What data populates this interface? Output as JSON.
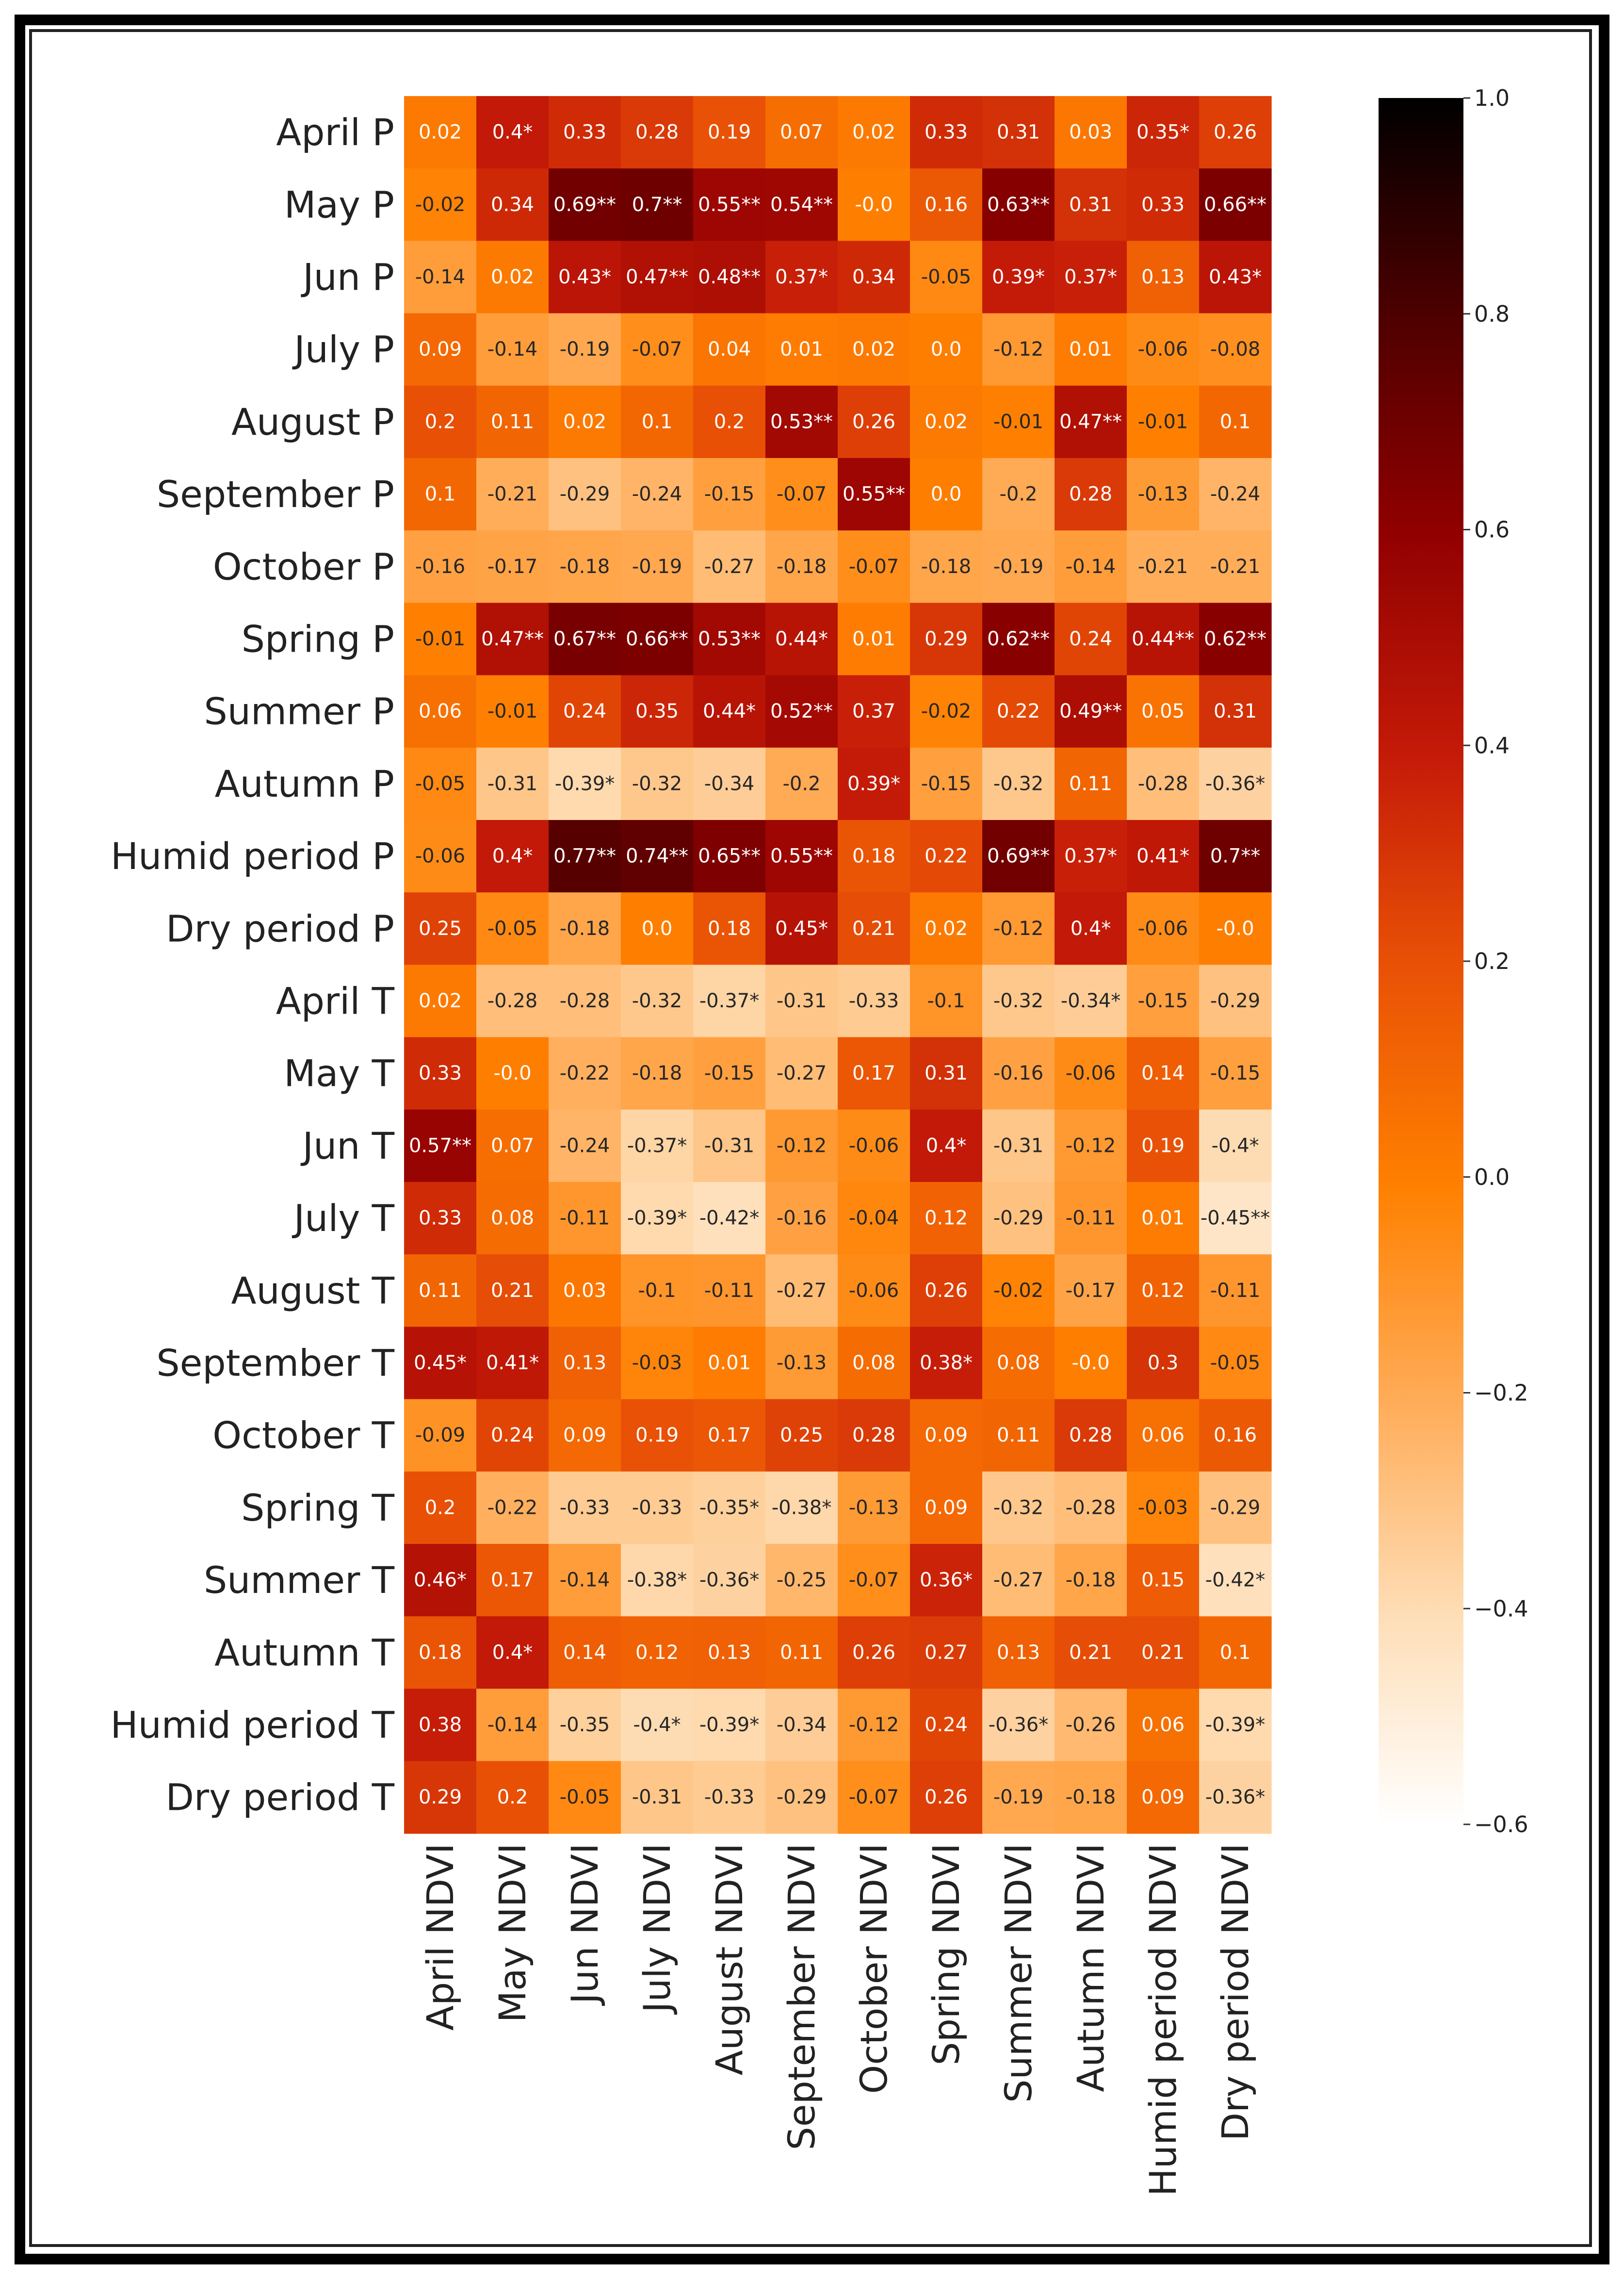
{
  "chart_data": {
    "type": "heatmap",
    "title": "",
    "xlabel": "",
    "ylabel": "",
    "colormap": "gist_heat (reversed)",
    "rows": [
      "April P",
      "May P",
      "Jun P",
      "July P",
      "August P",
      "September P",
      "October P",
      "Spring P",
      "Summer P",
      "Autumn P",
      "Humid  period P",
      "Dry period P",
      "April T",
      "May T",
      "Jun T",
      "July T",
      "August T",
      "September T",
      "October T",
      "Spring T",
      "Summer T",
      "Autumn T",
      "Humid  period T",
      "Dry period T"
    ],
    "columns": [
      "April NDVI",
      "May NDVI",
      "Jun NDVI",
      "July NDVI",
      "August NDVI",
      "September NDVI",
      "October NDVI",
      "Spring NDVI",
      "Summer NDVI",
      "Autumn NDVI",
      "Humid  period NDVI",
      "Dry period NDVI"
    ],
    "values": [
      [
        0.02,
        0.4,
        0.33,
        0.28,
        0.19,
        0.07,
        0.02,
        0.33,
        0.31,
        0.03,
        0.35,
        0.26
      ],
      [
        -0.02,
        0.34,
        0.69,
        0.7,
        0.55,
        0.54,
        -0.0,
        0.16,
        0.63,
        0.31,
        0.33,
        0.66
      ],
      [
        -0.14,
        0.02,
        0.43,
        0.47,
        0.48,
        0.37,
        0.34,
        -0.05,
        0.39,
        0.37,
        0.13,
        0.43
      ],
      [
        0.09,
        -0.14,
        -0.19,
        -0.07,
        0.04,
        0.01,
        0.02,
        0.0,
        -0.12,
        0.01,
        -0.06,
        -0.08
      ],
      [
        0.2,
        0.11,
        0.02,
        0.1,
        0.2,
        0.53,
        0.26,
        0.02,
        -0.01,
        0.47,
        -0.01,
        0.1
      ],
      [
        0.1,
        -0.21,
        -0.29,
        -0.24,
        -0.15,
        -0.07,
        0.55,
        0.0,
        -0.2,
        0.28,
        -0.13,
        -0.24
      ],
      [
        -0.16,
        -0.17,
        -0.18,
        -0.19,
        -0.27,
        -0.18,
        -0.07,
        -0.18,
        -0.19,
        -0.14,
        -0.21,
        -0.21
      ],
      [
        -0.01,
        0.47,
        0.67,
        0.66,
        0.53,
        0.44,
        0.01,
        0.29,
        0.62,
        0.24,
        0.44,
        0.62
      ],
      [
        0.06,
        -0.01,
        0.24,
        0.35,
        0.44,
        0.52,
        0.37,
        -0.02,
        0.22,
        0.49,
        0.05,
        0.31
      ],
      [
        -0.05,
        -0.31,
        -0.39,
        -0.32,
        -0.34,
        -0.2,
        0.39,
        -0.15,
        -0.32,
        0.11,
        -0.28,
        -0.36
      ],
      [
        -0.06,
        0.4,
        0.77,
        0.74,
        0.65,
        0.55,
        0.18,
        0.22,
        0.69,
        0.37,
        0.41,
        0.7
      ],
      [
        0.25,
        -0.05,
        -0.18,
        0.0,
        0.18,
        0.45,
        0.21,
        0.02,
        -0.12,
        0.4,
        -0.06,
        -0.0
      ],
      [
        0.02,
        -0.28,
        -0.28,
        -0.32,
        -0.37,
        -0.31,
        -0.33,
        -0.1,
        -0.32,
        -0.34,
        -0.15,
        -0.29
      ],
      [
        0.33,
        -0.0,
        -0.22,
        -0.18,
        -0.15,
        -0.27,
        0.17,
        0.31,
        -0.16,
        -0.06,
        0.14,
        -0.15
      ],
      [
        0.57,
        0.07,
        -0.24,
        -0.37,
        -0.31,
        -0.12,
        -0.06,
        0.4,
        -0.31,
        -0.12,
        0.19,
        -0.4
      ],
      [
        0.33,
        0.08,
        -0.11,
        -0.39,
        -0.42,
        -0.16,
        -0.04,
        0.12,
        -0.29,
        -0.11,
        0.01,
        -0.45
      ],
      [
        0.11,
        0.21,
        0.03,
        -0.1,
        -0.11,
        -0.27,
        -0.06,
        0.26,
        -0.02,
        -0.17,
        0.12,
        -0.11
      ],
      [
        0.45,
        0.41,
        0.13,
        -0.03,
        0.01,
        -0.13,
        0.08,
        0.38,
        0.08,
        -0.0,
        0.3,
        -0.05
      ],
      [
        -0.09,
        0.24,
        0.09,
        0.19,
        0.17,
        0.25,
        0.28,
        0.09,
        0.11,
        0.28,
        0.06,
        0.16
      ],
      [
        0.2,
        -0.22,
        -0.33,
        -0.33,
        -0.35,
        -0.38,
        -0.13,
        0.09,
        -0.32,
        -0.28,
        -0.03,
        -0.29
      ],
      [
        0.46,
        0.17,
        -0.14,
        -0.38,
        -0.36,
        -0.25,
        -0.07,
        0.36,
        -0.27,
        -0.18,
        0.15,
        -0.42
      ],
      [
        0.18,
        0.4,
        0.14,
        0.12,
        0.13,
        0.11,
        0.26,
        0.27,
        0.13,
        0.21,
        0.21,
        0.1
      ],
      [
        0.38,
        -0.14,
        -0.35,
        -0.4,
        -0.39,
        -0.34,
        -0.12,
        0.24,
        -0.36,
        -0.26,
        0.06,
        -0.39
      ],
      [
        0.29,
        0.2,
        -0.05,
        -0.31,
        -0.33,
        -0.29,
        -0.07,
        0.26,
        -0.19,
        -0.18,
        0.09,
        -0.36
      ]
    ],
    "annotations": [
      [
        "0.02",
        "0.4*",
        "0.33",
        "0.28",
        "0.19",
        "0.07",
        "0.02",
        "0.33",
        "0.31",
        "0.03",
        "0.35*",
        "0.26"
      ],
      [
        "-0.02",
        "0.34",
        "0.69**",
        "0.7**",
        "0.55**",
        "0.54**",
        "-0.0",
        "0.16",
        "0.63**",
        "0.31",
        "0.33",
        "0.66**"
      ],
      [
        "-0.14",
        "0.02",
        "0.43*",
        "0.47**",
        "0.48**",
        "0.37*",
        "0.34",
        "-0.05",
        "0.39*",
        "0.37*",
        "0.13",
        "0.43*"
      ],
      [
        "0.09",
        "-0.14",
        "-0.19",
        "-0.07",
        "0.04",
        "0.01",
        "0.02",
        "0.0",
        "-0.12",
        "0.01",
        "-0.06",
        "-0.08"
      ],
      [
        "0.2",
        "0.11",
        "0.02",
        "0.1",
        "0.2",
        "0.53**",
        "0.26",
        "0.02",
        "-0.01",
        "0.47**",
        "-0.01",
        "0.1"
      ],
      [
        "0.1",
        "-0.21",
        "-0.29",
        "-0.24",
        "-0.15",
        "-0.07",
        "0.55**",
        "0.0",
        "-0.2",
        "0.28",
        "-0.13",
        "-0.24"
      ],
      [
        "-0.16",
        "-0.17",
        "-0.18",
        "-0.19",
        "-0.27",
        "-0.18",
        "-0.07",
        "-0.18",
        "-0.19",
        "-0.14",
        "-0.21",
        "-0.21"
      ],
      [
        "-0.01",
        "0.47**",
        "0.67**",
        "0.66**",
        "0.53**",
        "0.44*",
        "0.01",
        "0.29",
        "0.62**",
        "0.24",
        "0.44**",
        "0.62**"
      ],
      [
        "0.06",
        "-0.01",
        "0.24",
        "0.35",
        "0.44*",
        "0.52**",
        "0.37",
        "-0.02",
        "0.22",
        "0.49**",
        "0.05",
        "0.31"
      ],
      [
        "-0.05",
        "-0.31",
        "-0.39*",
        "-0.32",
        "-0.34",
        "-0.2",
        "0.39*",
        "-0.15",
        "-0.32",
        "0.11",
        "-0.28",
        "-0.36*"
      ],
      [
        "-0.06",
        "0.4*",
        "0.77**",
        "0.74**",
        "0.65**",
        "0.55**",
        "0.18",
        "0.22",
        "0.69**",
        "0.37*",
        "0.41*",
        "0.7**"
      ],
      [
        "0.25",
        "-0.05",
        "-0.18",
        "0.0",
        "0.18",
        "0.45*",
        "0.21",
        "0.02",
        "-0.12",
        "0.4*",
        "-0.06",
        "-0.0"
      ],
      [
        "0.02",
        "-0.28",
        "-0.28",
        "-0.32",
        "-0.37*",
        "-0.31",
        "-0.33",
        "-0.1",
        "-0.32",
        "-0.34*",
        "-0.15",
        "-0.29"
      ],
      [
        "0.33",
        "-0.0",
        "-0.22",
        "-0.18",
        "-0.15",
        "-0.27",
        "0.17",
        "0.31",
        "-0.16",
        "-0.06",
        "0.14",
        "-0.15"
      ],
      [
        "0.57**",
        "0.07",
        "-0.24",
        "-0.37*",
        "-0.31",
        "-0.12",
        "-0.06",
        "0.4*",
        "-0.31",
        "-0.12",
        "0.19",
        "-0.4*"
      ],
      [
        "0.33",
        "0.08",
        "-0.11",
        "-0.39*",
        "-0.42*",
        "-0.16",
        "-0.04",
        "0.12",
        "-0.29",
        "-0.11",
        "0.01",
        "-0.45**"
      ],
      [
        "0.11",
        "0.21",
        "0.03",
        "-0.1",
        "-0.11",
        "-0.27",
        "-0.06",
        "0.26",
        "-0.02",
        "-0.17",
        "0.12",
        "-0.11"
      ],
      [
        "0.45*",
        "0.41*",
        "0.13",
        "-0.03",
        "0.01",
        "-0.13",
        "0.08",
        "0.38*",
        "0.08",
        "-0.0",
        "0.3",
        "-0.05"
      ],
      [
        "-0.09",
        "0.24",
        "0.09",
        "0.19",
        "0.17",
        "0.25",
        "0.28",
        "0.09",
        "0.11",
        "0.28",
        "0.06",
        "0.16"
      ],
      [
        "0.2",
        "-0.22",
        "-0.33",
        "-0.33",
        "-0.35*",
        "-0.38*",
        "-0.13",
        "0.09",
        "-0.32",
        "-0.28",
        "-0.03",
        "-0.29"
      ],
      [
        "0.46*",
        "0.17",
        "-0.14",
        "-0.38*",
        "-0.36*",
        "-0.25",
        "-0.07",
        "0.36*",
        "-0.27",
        "-0.18",
        "0.15",
        "-0.42*"
      ],
      [
        "0.18",
        "0.4*",
        "0.14",
        "0.12",
        "0.13",
        "0.11",
        "0.26",
        "0.27",
        "0.13",
        "0.21",
        "0.21",
        "0.1"
      ],
      [
        "0.38",
        "-0.14",
        "-0.35",
        "-0.4*",
        "-0.39*",
        "-0.34",
        "-0.12",
        "0.24",
        "-0.36*",
        "-0.26",
        "0.06",
        "-0.39*"
      ],
      [
        "0.29",
        "0.2",
        "-0.05",
        "-0.31",
        "-0.33",
        "-0.29",
        "-0.07",
        "0.26",
        "-0.19",
        "-0.18",
        "0.09",
        "-0.36*"
      ]
    ],
    "colorbar": {
      "range": [
        -0.6,
        1.0
      ],
      "ticks": [
        1.0,
        0.8,
        0.6,
        0.4,
        0.2,
        0.0,
        -0.2,
        -0.4,
        -0.6
      ],
      "tick_labels": [
        "1.0",
        "0.8",
        "0.6",
        "0.4",
        "0.2",
        "0.0",
        "−0.2",
        "−0.4",
        "−0.6"
      ]
    }
  }
}
